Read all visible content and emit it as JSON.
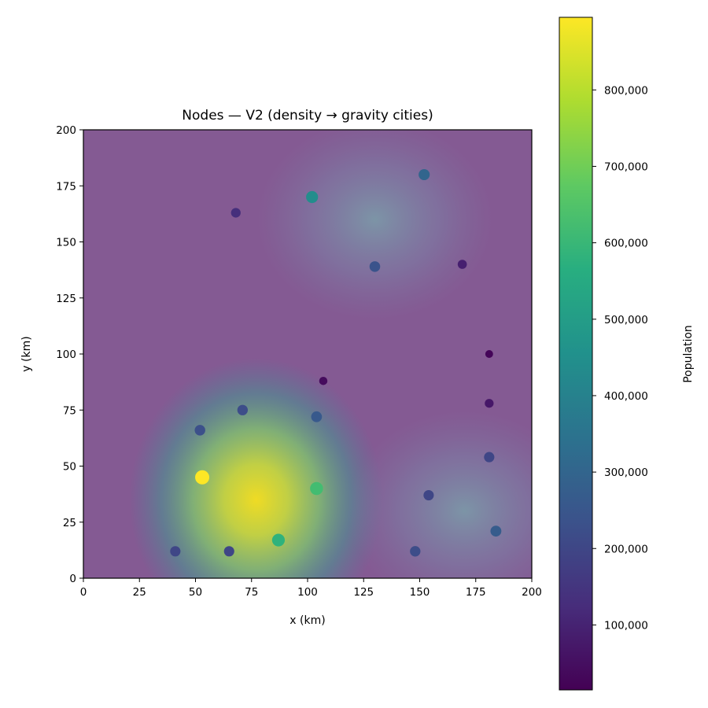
{
  "chart_data": {
    "type": "scatter",
    "title": "Nodes — V2 (density → gravity cities)",
    "xlabel": "x (km)",
    "ylabel": "y (km)",
    "xlim": [
      0,
      200
    ],
    "ylim": [
      0,
      200
    ],
    "x_ticks": [
      0,
      25,
      50,
      75,
      100,
      125,
      150,
      175,
      200
    ],
    "y_ticks": [
      0,
      25,
      50,
      75,
      100,
      125,
      150,
      175,
      200
    ],
    "x_tick_labels": [
      "0",
      "25",
      "50",
      "75",
      "100",
      "125",
      "150",
      "175",
      "200"
    ],
    "y_tick_labels": [
      "0",
      "25",
      "50",
      "75",
      "100",
      "125",
      "150",
      "175",
      "200"
    ],
    "background": "population density heatmap",
    "density_hotspots": [
      {
        "x": 77,
        "y": 35,
        "intensity": 1.0
      },
      {
        "x": 130,
        "y": 160,
        "intensity": 0.2
      },
      {
        "x": 170,
        "y": 30,
        "intensity": 0.22
      }
    ],
    "colorbar": {
      "label": "Population",
      "colormap": "viridis",
      "range": [
        15000,
        895000
      ],
      "ticks": [
        100000,
        200000,
        300000,
        400000,
        500000,
        600000,
        700000,
        800000
      ],
      "tick_labels": [
        "100,000",
        "200,000",
        "300,000",
        "400,000",
        "500,000",
        "600,000",
        "700,000",
        "800,000"
      ]
    },
    "points": [
      {
        "x": 53,
        "y": 45,
        "population": 895000
      },
      {
        "x": 87,
        "y": 17,
        "population": 580000
      },
      {
        "x": 104,
        "y": 40,
        "population": 620000
      },
      {
        "x": 102,
        "y": 170,
        "population": 440000
      },
      {
        "x": 152,
        "y": 180,
        "population": 300000
      },
      {
        "x": 130,
        "y": 139,
        "population": 240000
      },
      {
        "x": 68,
        "y": 163,
        "population": 130000
      },
      {
        "x": 169,
        "y": 140,
        "population": 90000
      },
      {
        "x": 181,
        "y": 100,
        "population": 25000
      },
      {
        "x": 107,
        "y": 88,
        "population": 40000
      },
      {
        "x": 181,
        "y": 78,
        "population": 70000
      },
      {
        "x": 71,
        "y": 75,
        "population": 220000
      },
      {
        "x": 104,
        "y": 72,
        "population": 260000
      },
      {
        "x": 52,
        "y": 66,
        "population": 230000
      },
      {
        "x": 181,
        "y": 54,
        "population": 200000
      },
      {
        "x": 154,
        "y": 37,
        "population": 200000
      },
      {
        "x": 184,
        "y": 21,
        "population": 270000
      },
      {
        "x": 148,
        "y": 12,
        "population": 220000
      },
      {
        "x": 41,
        "y": 12,
        "population": 200000
      },
      {
        "x": 65,
        "y": 12,
        "population": 200000
      }
    ]
  }
}
